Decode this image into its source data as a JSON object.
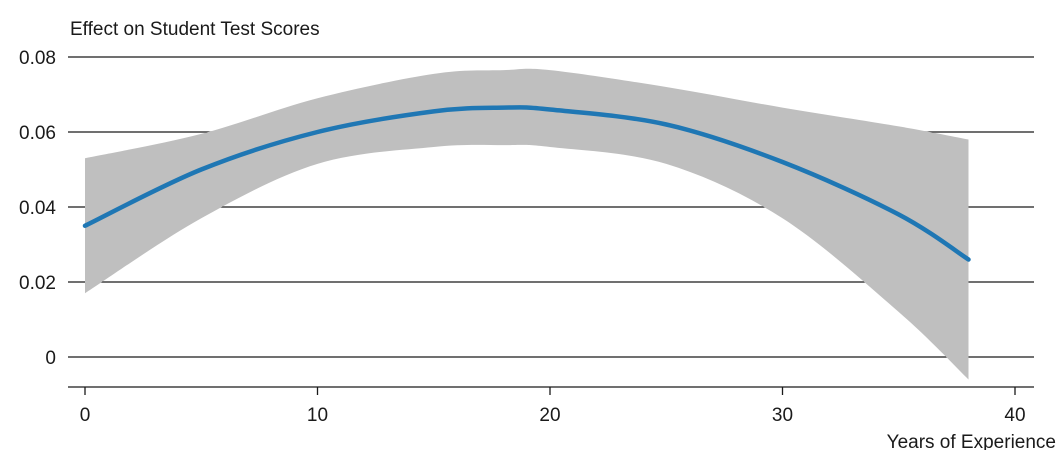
{
  "chart_data": {
    "type": "area",
    "ylabel": "Effect on Student Test Scores",
    "xlabel": "Years of Experience",
    "xlim": [
      -0.5,
      40
    ],
    "ylim": [
      -0.008,
      0.08
    ],
    "x_ticks": [
      0,
      10,
      20,
      30,
      40
    ],
    "x_tick_labels": [
      "0",
      "10",
      "20",
      "30",
      "40"
    ],
    "y_ticks": [
      0,
      0.02,
      0.04,
      0.06,
      0.08
    ],
    "y_tick_labels": [
      "0",
      "0.02",
      "0.04",
      "0.06",
      "0.08"
    ],
    "grid": "horizontal",
    "colors": {
      "line": "#1f77b4",
      "band": "#bfbfbf",
      "grid": "#1a1a1a"
    },
    "series": [
      {
        "kind": "line",
        "x": [
          0,
          5,
          10,
          15,
          18,
          20,
          25,
          30,
          35,
          38
        ],
        "y": [
          0.035,
          0.05,
          0.06,
          0.0655,
          0.0665,
          0.066,
          0.062,
          0.052,
          0.038,
          0.026
        ]
      },
      {
        "kind": "band",
        "x": [
          0,
          5,
          10,
          15,
          18,
          20,
          25,
          30,
          35,
          38
        ],
        "lower": [
          0.017,
          0.037,
          0.0515,
          0.056,
          0.0565,
          0.056,
          0.0515,
          0.037,
          0.012,
          -0.006
        ],
        "upper": [
          0.053,
          0.0595,
          0.069,
          0.0755,
          0.0765,
          0.0765,
          0.072,
          0.0665,
          0.0615,
          0.058
        ]
      }
    ]
  }
}
